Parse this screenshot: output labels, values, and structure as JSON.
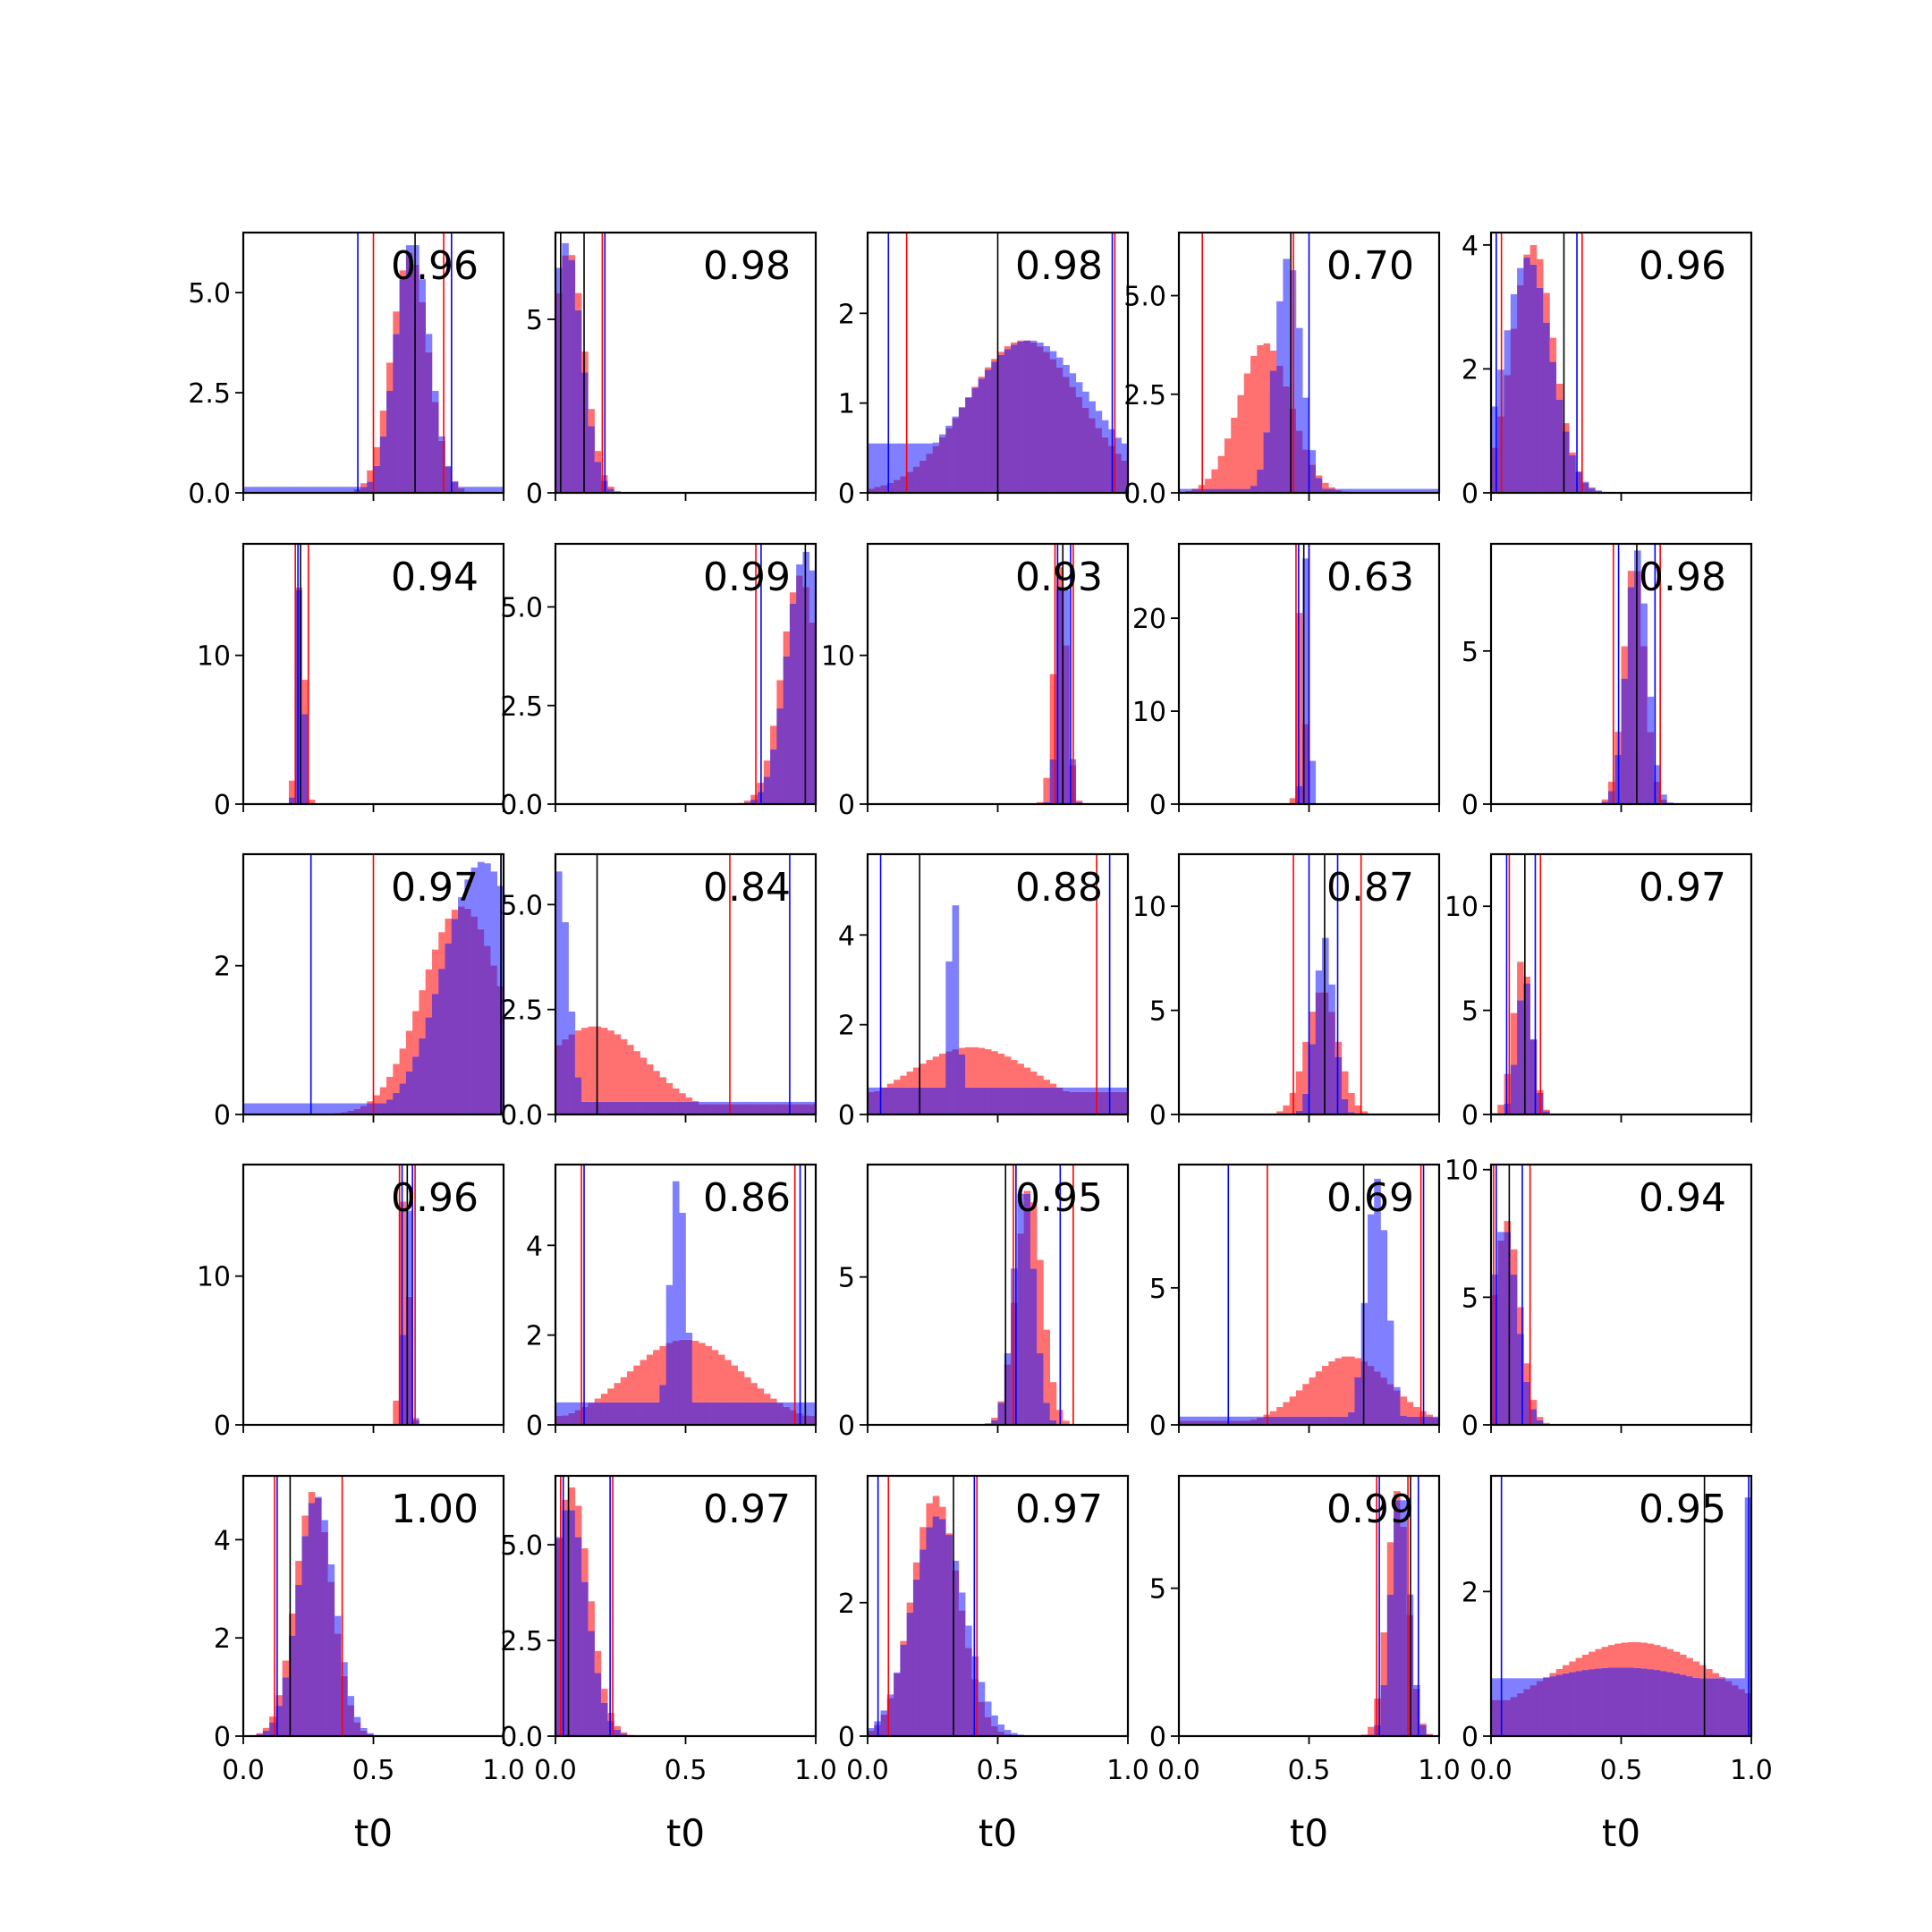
{
  "figure": {
    "grid": "5x5",
    "x_tick_labels": [
      "0.0",
      "0.5",
      "1.0"
    ]
  },
  "chart_data": {
    "type": "histogram-grid",
    "xlim": [
      0,
      1
    ],
    "xticks": [
      0,
      0.5,
      1.0
    ],
    "xlabel": "t0",
    "series_colors": {
      "red": "#ff0000",
      "blue": "#0000ff",
      "overlap": "#7f3fbf",
      "black": "#000000"
    },
    "panels": [
      {
        "score": "0.96",
        "ymax": 6.5,
        "yticks": [
          "0.0",
          "2.5",
          "5.0"
        ],
        "ytick_vals": [
          0,
          2.5,
          5.0
        ],
        "red": {
          "peak": 0.64,
          "width": 0.07,
          "height": 6.0
        },
        "blue": {
          "peak": 0.65,
          "width": 0.065,
          "height": 6.3,
          "floor": 0.15
        },
        "vlines": {
          "red": [
            0.5,
            0.77
          ],
          "blue": [
            0.44,
            0.8
          ],
          "black": [
            0.66
          ]
        }
      },
      {
        "score": "0.98",
        "ymax": 7.5,
        "yticks": [
          "0",
          "5"
        ],
        "ytick_vals": [
          0,
          5
        ],
        "red": {
          "peak": 0.05,
          "width": 0.06,
          "height": 7.0
        },
        "blue": {
          "peak": 0.04,
          "width": 0.06,
          "height": 7.2
        },
        "vlines": {
          "red": [
            0.18
          ],
          "blue": [
            0.19
          ],
          "black": [
            0.11,
            0.02
          ]
        }
      },
      {
        "score": "0.98",
        "ymax": 2.9,
        "yticks": [
          "0",
          "1",
          "2"
        ],
        "ytick_vals": [
          0,
          1,
          2
        ],
        "red": {
          "peak": 0.6,
          "width": 0.22,
          "height": 1.7
        },
        "blue": {
          "peak": 0.62,
          "width": 0.24,
          "height": 1.7,
          "floor": 0.55
        },
        "vlines": {
          "red": [
            0.15,
            0.95
          ],
          "blue": [
            0.08,
            0.94
          ],
          "black": [
            0.5
          ]
        }
      },
      {
        "score": "0.70",
        "ymax": 6.6,
        "yticks": [
          "0.0",
          "2.5",
          "5.0"
        ],
        "ytick_vals": [
          0,
          2.5,
          5.0
        ],
        "red": {
          "peak": 0.33,
          "width": 0.1,
          "height": 3.8
        },
        "blue": {
          "peak": 0.42,
          "width": 0.05,
          "height": 6.0,
          "floor": 0.1
        },
        "vlines": {
          "red": [
            0.09,
            0.44
          ],
          "blue": [
            0.5
          ],
          "black": [
            0.43
          ]
        }
      },
      {
        "score": "0.96",
        "ymax": 4.2,
        "yticks": [
          "0",
          "2",
          "4"
        ],
        "ytick_vals": [
          0,
          2,
          4
        ],
        "red": {
          "peak": 0.16,
          "width": 0.08,
          "height": 4.0
        },
        "blue": {
          "peak": 0.14,
          "width": 0.09,
          "height": 3.8
        },
        "vlines": {
          "red": [
            0.04,
            0.35
          ],
          "blue": [
            0.02,
            0.33
          ],
          "black": [
            0.28
          ]
        }
      },
      {
        "score": "0.94",
        "ymax": 17.5,
        "yticks": [
          "0",
          "10"
        ],
        "ytick_vals": [
          0,
          10
        ],
        "red": {
          "peak": 0.22,
          "width": 0.015,
          "height": 16.5
        },
        "blue": {
          "peak": 0.22,
          "width": 0.012,
          "height": 17.5
        },
        "vlines": {
          "red": [
            0.2,
            0.25
          ],
          "blue": [
            0.21
          ],
          "black": [
            0.22
          ]
        }
      },
      {
        "score": "0.99",
        "ymax": 6.6,
        "yticks": [
          "0.0",
          "2.5",
          "5.0"
        ],
        "ytick_vals": [
          0,
          2.5,
          5.0
        ],
        "red": {
          "peak": 0.94,
          "width": 0.07,
          "height": 5.8
        },
        "blue": {
          "peak": 0.96,
          "width": 0.07,
          "height": 6.4
        },
        "vlines": {
          "red": [
            0.77
          ],
          "blue": [
            0.79
          ],
          "black": [
            0.96
          ]
        }
      },
      {
        "score": "0.93",
        "ymax": 17.5,
        "yticks": [
          "0",
          "10"
        ],
        "ytick_vals": [
          0,
          10
        ],
        "red": {
          "peak": 0.74,
          "width": 0.025,
          "height": 16.0
        },
        "blue": {
          "peak": 0.75,
          "width": 0.02,
          "height": 17.5
        },
        "vlines": {
          "red": [
            0.72,
            0.79
          ],
          "blue": [
            0.73,
            0.78
          ],
          "black": [
            0.75
          ]
        }
      },
      {
        "score": "0.63",
        "ymax": 28,
        "yticks": [
          "0",
          "10",
          "20"
        ],
        "ytick_vals": [
          0,
          10,
          20
        ],
        "red": {
          "peak": 0.47,
          "width": 0.012,
          "height": 25
        },
        "blue": {
          "peak": 0.49,
          "width": 0.012,
          "height": 27
        },
        "vlines": {
          "red": [
            0.45,
            0.5
          ],
          "blue": [
            0.46,
            0.5
          ],
          "black": [
            0.48
          ]
        }
      },
      {
        "score": "0.98",
        "ymax": 8.5,
        "yticks": [
          "0",
          "5"
        ],
        "ytick_vals": [
          0,
          5
        ],
        "red": {
          "peak": 0.55,
          "width": 0.04,
          "height": 8.0
        },
        "blue": {
          "peak": 0.56,
          "width": 0.04,
          "height": 8.3
        },
        "vlines": {
          "red": [
            0.47,
            0.65
          ],
          "blue": [
            0.49,
            0.63
          ],
          "black": [
            0.56
          ]
        }
      },
      {
        "score": "0.97",
        "ymax": 3.5,
        "yticks": [
          "0",
          "2"
        ],
        "ytick_vals": [
          0,
          2
        ],
        "red": {
          "peak": 0.84,
          "width": 0.15,
          "height": 2.8
        },
        "blue": {
          "peak": 0.92,
          "width": 0.15,
          "height": 3.4,
          "floor": 0.15
        },
        "vlines": {
          "red": [
            0.5
          ],
          "blue": [
            0.26,
            0.99
          ],
          "black": [
            0.99
          ]
        }
      },
      {
        "score": "0.84",
        "ymax": 6.2,
        "yticks": [
          "0.0",
          "2.5",
          "5.0"
        ],
        "ytick_vals": [
          0,
          2.5,
          5.0
        ],
        "red": {
          "peak": 0.15,
          "width": 0.2,
          "height": 2.1,
          "floor": 0.25
        },
        "blue": {
          "peak": 0.01,
          "width": 0.04,
          "height": 5.8,
          "floor": 0.3
        },
        "vlines": {
          "red": [
            0.67
          ],
          "blue": [
            0.9
          ],
          "black": [
            0.16
          ]
        }
      },
      {
        "score": "0.88",
        "ymax": 5.8,
        "yticks": [
          "0",
          "2",
          "4"
        ],
        "ytick_vals": [
          0,
          2,
          4
        ],
        "red": {
          "peak": 0.4,
          "width": 0.25,
          "height": 1.5,
          "floor": 0.5
        },
        "blue": {
          "peak": 0.33,
          "width": 0.02,
          "height": 5.0,
          "floor": 0.6
        },
        "vlines": {
          "red": [
            0.88
          ],
          "blue": [
            0.05,
            0.93
          ],
          "black": [
            0.2
          ]
        }
      },
      {
        "score": "0.87",
        "ymax": 12.5,
        "yticks": [
          "0",
          "5",
          "10"
        ],
        "ytick_vals": [
          0,
          5,
          10
        ],
        "red": {
          "peak": 0.55,
          "width": 0.06,
          "height": 6.0
        },
        "blue": {
          "peak": 0.56,
          "width": 0.035,
          "height": 8.5
        },
        "vlines": {
          "red": [
            0.44,
            0.7
          ],
          "blue": [
            0.5,
            0.61
          ],
          "black": [
            0.56
          ]
        }
      },
      {
        "score": "0.97",
        "ymax": 12.5,
        "yticks": [
          "0",
          "5",
          "10"
        ],
        "ytick_vals": [
          0,
          5,
          10
        ],
        "red": {
          "peak": 0.12,
          "width": 0.035,
          "height": 7.5
        },
        "blue": {
          "peak": 0.13,
          "width": 0.03,
          "height": 6.5
        },
        "vlines": {
          "red": [
            0.07,
            0.19
          ],
          "blue": [
            0.06,
            0.17
          ],
          "black": [
            0.13
          ]
        }
      },
      {
        "score": "0.96",
        "ymax": 17.5,
        "yticks": [
          "0",
          "10"
        ],
        "ytick_vals": [
          0,
          10
        ],
        "red": {
          "peak": 0.62,
          "width": 0.015,
          "height": 17
        },
        "blue": {
          "peak": 0.63,
          "width": 0.012,
          "height": 17.5
        },
        "vlines": {
          "red": [
            0.6,
            0.66
          ],
          "blue": [
            0.61,
            0.65
          ],
          "black": [
            0.63
          ]
        }
      },
      {
        "score": "0.86",
        "ymax": 5.8,
        "yticks": [
          "0",
          "2",
          "4"
        ],
        "ytick_vals": [
          0,
          2,
          4
        ],
        "red": {
          "peak": 0.5,
          "width": 0.22,
          "height": 1.9,
          "floor": 0.2
        },
        "blue": {
          "peak": 0.47,
          "width": 0.03,
          "height": 5.6,
          "floor": 0.5
        },
        "vlines": {
          "red": [
            0.1,
            0.92
          ],
          "blue": [
            0.11,
            0.94
          ],
          "black": [
            0.96
          ]
        }
      },
      {
        "score": "0.95",
        "ymax": 8.8,
        "yticks": [
          "0",
          "5"
        ],
        "ytick_vals": [
          0,
          5
        ],
        "red": {
          "peak": 0.62,
          "width": 0.05,
          "height": 8.0
        },
        "blue": {
          "peak": 0.6,
          "width": 0.04,
          "height": 8.2
        },
        "vlines": {
          "red": [
            0.56,
            0.79
          ],
          "blue": [
            0.57,
            0.74
          ],
          "black": [
            0.53
          ]
        }
      },
      {
        "score": "0.69",
        "ymax": 9.5,
        "yticks": [
          "0",
          "5"
        ],
        "ytick_vals": [
          0,
          5
        ],
        "red": {
          "peak": 0.65,
          "width": 0.16,
          "height": 2.5,
          "floor": 0.15
        },
        "blue": {
          "peak": 0.76,
          "width": 0.04,
          "height": 9.0,
          "floor": 0.3
        },
        "vlines": {
          "red": [
            0.34,
            0.93
          ],
          "blue": [
            0.19,
            0.94
          ],
          "black": [
            0.71
          ]
        }
      },
      {
        "score": "0.94",
        "ymax": 10.2,
        "yticks": [
          "0",
          "5",
          "10"
        ],
        "ytick_vals": [
          0,
          5,
          10
        ],
        "red": {
          "peak": 0.06,
          "width": 0.05,
          "height": 8.0
        },
        "blue": {
          "peak": 0.05,
          "width": 0.05,
          "height": 7.8
        },
        "vlines": {
          "red": [
            0.01,
            0.15
          ],
          "blue": [
            0.02,
            0.12
          ],
          "black": [
            0.07
          ]
        }
      },
      {
        "score": "1.00",
        "ymax": 5.3,
        "yticks": [
          "0",
          "2",
          "4"
        ],
        "ytick_vals": [
          0,
          2,
          4
        ],
        "red": {
          "peak": 0.27,
          "width": 0.07,
          "height": 5.0
        },
        "blue": {
          "peak": 0.28,
          "width": 0.07,
          "height": 4.9
        },
        "vlines": {
          "red": [
            0.12,
            0.38
          ],
          "blue": [
            0.13
          ],
          "black": [
            0.18
          ]
        }
      },
      {
        "score": "0.97",
        "ymax": 6.8,
        "yticks": [
          "0.0",
          "2.5",
          "5.0"
        ],
        "ytick_vals": [
          0,
          2.5,
          5.0
        ],
        "red": {
          "peak": 0.06,
          "width": 0.07,
          "height": 6.5
        },
        "blue": {
          "peak": 0.05,
          "width": 0.07,
          "height": 6.0
        },
        "vlines": {
          "red": [
            0.02,
            0.22
          ],
          "blue": [
            0.03,
            0.21
          ],
          "black": [
            0.05
          ]
        }
      },
      {
        "score": "0.97",
        "ymax": 3.9,
        "yticks": [
          "0",
          "2"
        ],
        "ytick_vals": [
          0,
          2
        ],
        "red": {
          "peak": 0.26,
          "width": 0.09,
          "height": 3.6
        },
        "blue": {
          "peak": 0.27,
          "width": 0.1,
          "height": 3.3
        },
        "vlines": {
          "red": [
            0.08,
            0.42
          ],
          "blue": [
            0.04,
            0.41
          ],
          "black": [
            0.33
          ]
        }
      },
      {
        "score": "0.99",
        "ymax": 8.8,
        "yticks": [
          "0",
          "5"
        ],
        "ytick_vals": [
          0,
          5
        ],
        "red": {
          "peak": 0.84,
          "width": 0.04,
          "height": 8.3
        },
        "blue": {
          "peak": 0.85,
          "width": 0.035,
          "height": 8.5
        },
        "vlines": {
          "red": [
            0.76,
            0.88
          ],
          "blue": [
            0.77,
            0.92
          ],
          "black": [
            0.89
          ]
        }
      },
      {
        "score": "0.95",
        "ymax": 3.6,
        "yticks": [
          "0",
          "2"
        ],
        "ytick_vals": [
          0,
          2
        ],
        "red": {
          "peak": 0.55,
          "width": 0.35,
          "height": 1.3,
          "floor": 0.5
        },
        "blue": {
          "peak": 0.5,
          "width": 0.5,
          "height": 0.95,
          "floor": 0.8,
          "edge": 3.3
        },
        "vlines": {
          "red": [],
          "blue": [
            0.04,
            0.99
          ],
          "black": [
            0.82
          ]
        }
      }
    ]
  }
}
